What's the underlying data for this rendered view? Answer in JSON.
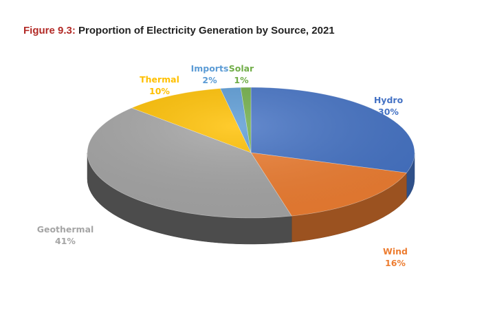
{
  "figure": {
    "number": "Figure 9.3:",
    "title": "Proportion of Electricity Generation by Source, 2021"
  },
  "chart_data": {
    "type": "pie",
    "style": "3d",
    "legend": "none",
    "data_labels": "category-and-percent",
    "slices": [
      {
        "name": "Hydro",
        "value": 30,
        "label": "30%",
        "color": "#4472c4"
      },
      {
        "name": "Wind",
        "value": 16,
        "label": "16%",
        "color": "#ed7d31"
      },
      {
        "name": "Geothermal",
        "value": 41,
        "label": "41%",
        "color": "#a5a5a5"
      },
      {
        "name": "Thermal",
        "value": 10,
        "label": "10%",
        "color": "#ffc000"
      },
      {
        "name": "Imports",
        "value": 2,
        "label": "2%",
        "color": "#5b9bd5"
      },
      {
        "name": "Solar",
        "value": 1,
        "label": "1%",
        "color": "#70ad47"
      }
    ]
  }
}
